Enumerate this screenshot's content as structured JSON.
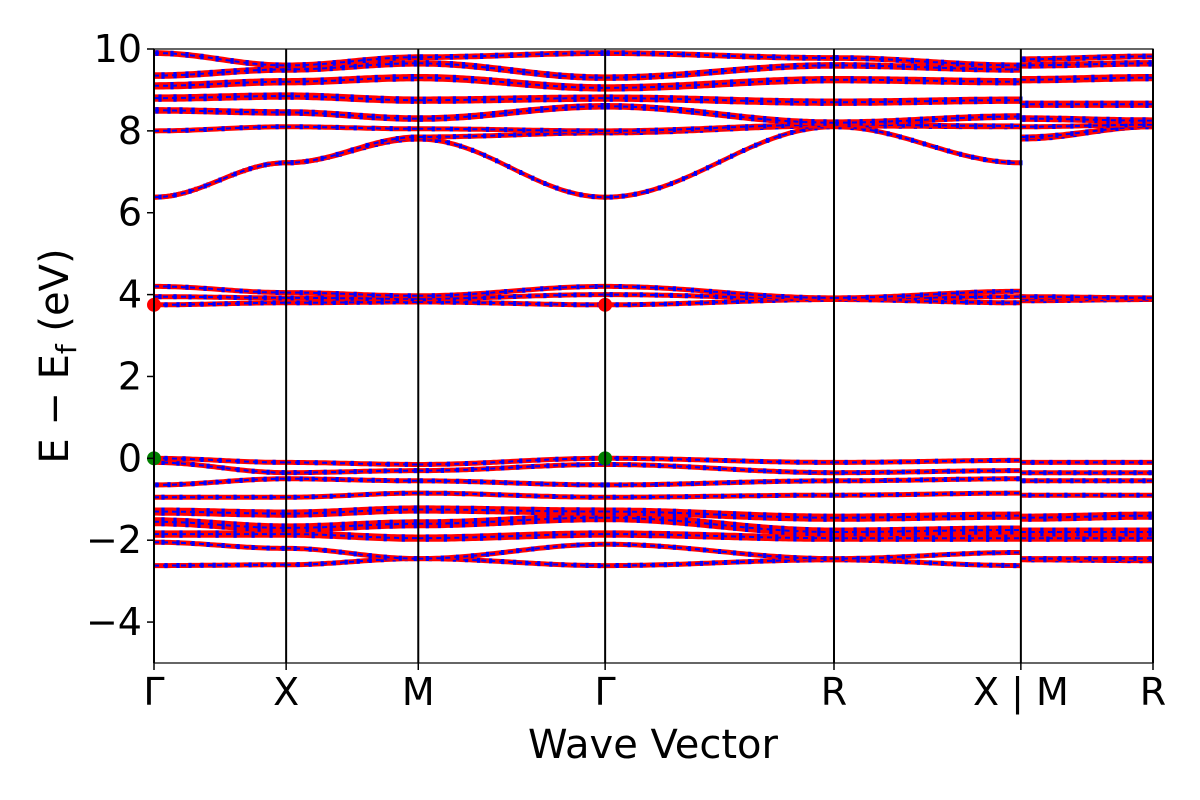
{
  "chart_data": {
    "type": "line",
    "title": "",
    "xlabel": "Wave Vector",
    "ylabel_parts": {
      "main": "E − E",
      "sub": "f",
      "unit": " (eV)"
    },
    "ylim": [
      -5,
      10
    ],
    "y_ticks": [
      {
        "value": -4,
        "label": "−4"
      },
      {
        "value": -2,
        "label": "−2"
      },
      {
        "value": 0,
        "label": "0"
      },
      {
        "value": 2,
        "label": "2"
      },
      {
        "value": 4,
        "label": "4"
      },
      {
        "value": 6,
        "label": "6"
      },
      {
        "value": 8,
        "label": "8"
      },
      {
        "value": 10,
        "label": "10"
      }
    ],
    "kpath": [
      {
        "label": "Γ",
        "k": 0.0
      },
      {
        "label": "X",
        "k": 0.5
      },
      {
        "label": "M",
        "k": 1.0
      },
      {
        "label": "Γ",
        "k": 1.7071
      },
      {
        "label": "R",
        "k": 2.5731
      },
      {
        "label": "X | M",
        "k": 3.2802
      },
      {
        "label": "R",
        "k": 3.7802
      }
    ],
    "xlim": [
      0,
      3.7802
    ],
    "band_style": {
      "fill": "#ff0000",
      "stripe": "#0000ff",
      "dash": "#0000ff"
    },
    "markers": [
      {
        "k": 0.0,
        "energy": 3.75,
        "color": "#ff0000",
        "name": "cbm-marker"
      },
      {
        "k": 1.7071,
        "energy": 3.75,
        "color": "#ff0000",
        "name": "cbm-marker"
      },
      {
        "k": 0.0,
        "energy": 0.0,
        "color": "#008000",
        "name": "vbm-marker"
      },
      {
        "k": 1.7071,
        "energy": 0.0,
        "color": "#008000",
        "name": "vbm-marker"
      }
    ],
    "bands": [
      {
        "name": "band-1",
        "points": [
          [
            0,
            -2.62
          ],
          [
            0.5,
            -2.6
          ],
          [
            1.0,
            -2.45
          ],
          [
            1.7071,
            -2.62
          ],
          [
            2.5731,
            -2.48
          ],
          [
            3.2802,
            -2.62
          ],
          [
            3.2802,
            -2.48
          ],
          [
            3.7802,
            -2.5
          ]
        ],
        "width": 0.08
      },
      {
        "name": "band-2",
        "points": [
          [
            0,
            -2.05
          ],
          [
            0.5,
            -2.2
          ],
          [
            1.0,
            -2.45
          ],
          [
            1.7071,
            -2.1
          ],
          [
            2.5731,
            -2.45
          ],
          [
            3.2802,
            -2.3
          ],
          [
            3.2802,
            -2.45
          ],
          [
            3.7802,
            -2.45
          ]
        ],
        "width": 0.08
      },
      {
        "name": "band-3",
        "points": [
          [
            0,
            -1.85
          ],
          [
            0.5,
            -1.85
          ],
          [
            1.0,
            -1.95
          ],
          [
            1.7071,
            -1.85
          ],
          [
            2.5731,
            -1.95
          ],
          [
            3.2802,
            -1.95
          ],
          [
            3.2802,
            -1.95
          ],
          [
            3.7802,
            -1.95
          ]
        ],
        "width": 0.18
      },
      {
        "name": "band-4",
        "points": [
          [
            0,
            -1.55
          ],
          [
            0.5,
            -1.7
          ],
          [
            1.0,
            -1.6
          ],
          [
            1.7071,
            -1.45
          ],
          [
            2.5731,
            -1.8
          ],
          [
            3.2802,
            -1.75
          ],
          [
            3.2802,
            -1.8
          ],
          [
            3.7802,
            -1.8
          ]
        ],
        "width": 0.22
      },
      {
        "name": "band-5",
        "points": [
          [
            0,
            -1.3
          ],
          [
            0.5,
            -1.35
          ],
          [
            1.0,
            -1.25
          ],
          [
            1.7071,
            -1.3
          ],
          [
            2.5731,
            -1.45
          ],
          [
            3.2802,
            -1.4
          ],
          [
            3.2802,
            -1.45
          ],
          [
            3.7802,
            -1.4
          ]
        ],
        "width": 0.2
      },
      {
        "name": "band-6",
        "points": [
          [
            0,
            -0.95
          ],
          [
            0.5,
            -0.95
          ],
          [
            1.0,
            -0.85
          ],
          [
            1.7071,
            -0.95
          ],
          [
            2.5731,
            -0.9
          ],
          [
            3.2802,
            -0.85
          ],
          [
            3.2802,
            -0.9
          ],
          [
            3.7802,
            -0.9
          ]
        ],
        "width": 0.12
      },
      {
        "name": "band-7",
        "points": [
          [
            0,
            -0.65
          ],
          [
            0.5,
            -0.5
          ],
          [
            1.0,
            -0.55
          ],
          [
            1.7071,
            -0.65
          ],
          [
            2.5731,
            -0.55
          ],
          [
            3.2802,
            -0.5
          ],
          [
            3.2802,
            -0.55
          ],
          [
            3.7802,
            -0.55
          ]
        ],
        "width": 0.06
      },
      {
        "name": "band-8",
        "points": [
          [
            0,
            -0.1
          ],
          [
            0.5,
            -0.35
          ],
          [
            1.0,
            -0.3
          ],
          [
            1.7071,
            -0.15
          ],
          [
            2.5731,
            -0.35
          ],
          [
            3.2802,
            -0.3
          ],
          [
            3.2802,
            -0.35
          ],
          [
            3.7802,
            -0.35
          ]
        ],
        "width": 0.1
      },
      {
        "name": "band-9",
        "points": [
          [
            0,
            0.0
          ],
          [
            0.5,
            -0.1
          ],
          [
            1.0,
            -0.15
          ],
          [
            1.7071,
            0.0
          ],
          [
            2.5731,
            -0.1
          ],
          [
            3.2802,
            -0.05
          ],
          [
            3.2802,
            -0.1
          ],
          [
            3.7802,
            -0.1
          ]
        ],
        "width": 0.12
      },
      {
        "name": "band-10",
        "points": [
          [
            0,
            3.75
          ],
          [
            0.5,
            3.8
          ],
          [
            1.0,
            3.82
          ],
          [
            1.7071,
            3.75
          ],
          [
            2.5731,
            3.88
          ],
          [
            3.2802,
            3.8
          ],
          [
            3.2802,
            3.85
          ],
          [
            3.7802,
            3.88
          ]
        ],
        "width": 0.12
      },
      {
        "name": "band-11",
        "points": [
          [
            0,
            3.95
          ],
          [
            0.5,
            3.92
          ],
          [
            1.0,
            3.9
          ],
          [
            1.7071,
            4.0
          ],
          [
            2.5731,
            3.9
          ],
          [
            3.2802,
            3.95
          ],
          [
            3.2802,
            3.9
          ],
          [
            3.7802,
            3.9
          ]
        ],
        "width": 0.12
      },
      {
        "name": "band-12",
        "points": [
          [
            0,
            4.2
          ],
          [
            0.5,
            4.05
          ],
          [
            1.0,
            3.97
          ],
          [
            1.7071,
            4.2
          ],
          [
            2.5731,
            3.92
          ],
          [
            3.2802,
            4.08
          ],
          [
            3.2802,
            3.95
          ],
          [
            3.7802,
            3.92
          ]
        ],
        "width": 0.1
      },
      {
        "name": "band-13",
        "points": [
          [
            0,
            6.38
          ],
          [
            0.5,
            7.22
          ],
          [
            1.0,
            7.8
          ],
          [
            1.7071,
            6.38
          ],
          [
            2.5731,
            8.1
          ],
          [
            3.2802,
            7.22
          ],
          [
            3.2802,
            7.8
          ],
          [
            3.7802,
            8.1
          ]
        ],
        "width": 0.06
      },
      {
        "name": "band-14",
        "points": [
          [
            0,
            6.38
          ],
          [
            0.5,
            7.22
          ],
          [
            1.0,
            7.85
          ],
          [
            1.7071,
            7.95
          ],
          [
            2.5731,
            8.12
          ],
          [
            3.2802,
            8.1
          ],
          [
            3.2802,
            7.85
          ],
          [
            3.7802,
            8.1
          ]
        ],
        "width": 0.06
      },
      {
        "name": "band-15",
        "points": [
          [
            0,
            8.0
          ],
          [
            0.5,
            8.1
          ],
          [
            1.0,
            8.05
          ],
          [
            1.7071,
            8.0
          ],
          [
            2.5731,
            8.15
          ],
          [
            3.2802,
            8.12
          ],
          [
            3.2802,
            8.1
          ],
          [
            3.7802,
            8.15
          ]
        ],
        "width": 0.12
      },
      {
        "name": "band-16",
        "points": [
          [
            0,
            8.5
          ],
          [
            0.5,
            8.45
          ],
          [
            1.0,
            8.3
          ],
          [
            1.7071,
            8.6
          ],
          [
            2.5731,
            8.2
          ],
          [
            3.2802,
            8.35
          ],
          [
            3.2802,
            8.3
          ],
          [
            3.7802,
            8.25
          ]
        ],
        "width": 0.16
      },
      {
        "name": "band-17",
        "points": [
          [
            0,
            8.8
          ],
          [
            0.5,
            8.85
          ],
          [
            1.0,
            8.75
          ],
          [
            1.7071,
            8.8
          ],
          [
            2.5731,
            8.7
          ],
          [
            3.2802,
            8.75
          ],
          [
            3.2802,
            8.65
          ],
          [
            3.7802,
            8.65
          ]
        ],
        "width": 0.18
      },
      {
        "name": "band-18",
        "points": [
          [
            0,
            9.1
          ],
          [
            0.5,
            9.2
          ],
          [
            1.0,
            9.3
          ],
          [
            1.7071,
            9.05
          ],
          [
            2.5731,
            9.25
          ],
          [
            3.2802,
            9.2
          ],
          [
            3.2802,
            9.25
          ],
          [
            3.7802,
            9.3
          ]
        ],
        "width": 0.18
      },
      {
        "name": "band-19",
        "points": [
          [
            0,
            9.35
          ],
          [
            0.5,
            9.5
          ],
          [
            1.0,
            9.65
          ],
          [
            1.7071,
            9.3
          ],
          [
            2.5731,
            9.6
          ],
          [
            3.2802,
            9.5
          ],
          [
            3.2802,
            9.6
          ],
          [
            3.7802,
            9.65
          ]
        ],
        "width": 0.16
      },
      {
        "name": "band-20",
        "points": [
          [
            0,
            9.9
          ],
          [
            0.5,
            9.6
          ],
          [
            1.0,
            9.8
          ],
          [
            1.7071,
            9.9
          ],
          [
            2.5731,
            9.78
          ],
          [
            3.2802,
            9.6
          ],
          [
            3.2802,
            9.75
          ],
          [
            3.7802,
            9.82
          ]
        ],
        "width": 0.14
      }
    ]
  }
}
